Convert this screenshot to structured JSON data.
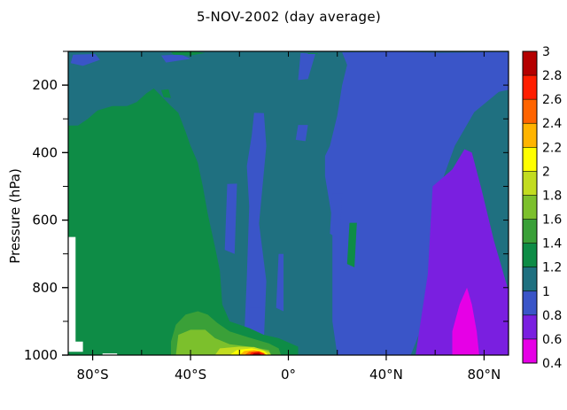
{
  "chart_data": {
    "type": "heatmap",
    "title": "5-NOV-2002 (day average)",
    "ylabel": "Pressure (hPa)",
    "xlabel": "",
    "xlim": [
      -90,
      90
    ],
    "ylim": [
      1000,
      100
    ],
    "y_axis_inverted": true,
    "x_ticks": [
      {
        "value": -80,
        "label": "80°S"
      },
      {
        "value": -40,
        "label": "40°S"
      },
      {
        "value": 0,
        "label": "0°"
      },
      {
        "value": 40,
        "label": "40°N"
      },
      {
        "value": 80,
        "label": "80°N"
      }
    ],
    "y_ticks": [
      {
        "value": 200,
        "label": "200"
      },
      {
        "value": 400,
        "label": "400"
      },
      {
        "value": 600,
        "label": "600"
      },
      {
        "value": 800,
        "label": "800"
      },
      {
        "value": 1000,
        "label": "1000"
      }
    ],
    "colorbar": {
      "levels": [
        0.4,
        0.6,
        0.8,
        1,
        1.2,
        1.4,
        1.6,
        1.8,
        2,
        2.2,
        2.4,
        2.6,
        2.8,
        3
      ],
      "labels": [
        "0.4",
        "0.6",
        "0.8",
        "1",
        "1.2",
        "1.4",
        "1.6",
        "1.8",
        "2",
        "2.2",
        "2.4",
        "2.6",
        "2.8",
        "3"
      ],
      "colors": [
        "#e600e6",
        "#7a1fe0",
        "#3a55c8",
        "#1f7080",
        "#0e8c46",
        "#3aa038",
        "#7cc02c",
        "#c2dc20",
        "#ffff00",
        "#ffb400",
        "#ff6400",
        "#ff1e00",
        "#b40000"
      ]
    },
    "regions": [
      {
        "level": 1.0,
        "desc": "background field",
        "polys": [
          [
            [
              -90,
              100
            ],
            [
              90,
              100
            ],
            [
              90,
              1000
            ],
            [
              -90,
              1000
            ]
          ]
        ]
      },
      {
        "level": 0.8,
        "polys": [
          [
            [
              -88,
              110
            ],
            [
              -79,
              108
            ],
            [
              -77,
              125
            ],
            [
              -84,
              143
            ],
            [
              -89,
              135
            ]
          ],
          [
            [
              -52,
              112
            ],
            [
              -44,
              109
            ],
            [
              -40,
              122
            ],
            [
              -50,
              133
            ]
          ],
          [
            [
              22,
              103
            ],
            [
              44,
              101
            ],
            [
              62,
              104
            ],
            [
              86,
              102
            ],
            [
              90,
              103
            ],
            [
              90,
              214
            ],
            [
              86,
              220
            ],
            [
              76,
              280
            ],
            [
              68,
              380
            ],
            [
              60,
              540
            ],
            [
              62,
              720
            ],
            [
              56,
              890
            ],
            [
              50,
              1000
            ],
            [
              20,
              1000
            ],
            [
              18,
              900
            ],
            [
              18,
              600
            ],
            [
              15,
              470
            ],
            [
              15,
              410
            ],
            [
              17,
              380
            ],
            [
              20,
              290
            ],
            [
              22,
              200
            ],
            [
              24,
              140
            ]
          ],
          [
            [
              5,
              105
            ],
            [
              11,
              108
            ],
            [
              8,
              182
            ],
            [
              4,
              185
            ]
          ],
          [
            [
              -14,
              282
            ],
            [
              -10,
              283
            ],
            [
              -9,
              380
            ],
            [
              -12,
              610
            ],
            [
              -9,
              780
            ],
            [
              -10,
              955
            ],
            [
              -18,
              940
            ],
            [
              -17,
              770
            ],
            [
              -16,
              560
            ],
            [
              -17,
              440
            ],
            [
              -15,
              350
            ]
          ],
          [
            [
              -25,
              493
            ],
            [
              -21,
              492
            ],
            [
              -22,
              700
            ],
            [
              -26,
              688
            ]
          ],
          [
            [
              4,
              318
            ],
            [
              8,
              318
            ],
            [
              7,
              366
            ],
            [
              3,
              362
            ]
          ],
          [
            [
              18,
              520
            ],
            [
              22,
              520
            ],
            [
              21,
              660
            ],
            [
              17,
              640
            ]
          ],
          [
            [
              -4,
              700
            ],
            [
              -2,
              700
            ],
            [
              -2,
              870
            ],
            [
              -5,
              860
            ]
          ],
          [
            [
              -16,
              860
            ],
            [
              -11,
              860
            ],
            [
              -11,
              990
            ],
            [
              -16,
              990
            ]
          ]
        ]
      },
      {
        "level": 0.6,
        "polys": [
          [
            [
              59,
              500
            ],
            [
              67,
              450
            ],
            [
              72,
              390
            ],
            [
              75,
              400
            ],
            [
              79,
              510
            ],
            [
              84,
              660
            ],
            [
              90,
              810
            ],
            [
              90,
              1000
            ],
            [
              52,
              1000
            ],
            [
              57,
              760
            ]
          ]
        ]
      },
      {
        "level": 0.4,
        "polys": [
          [
            [
              67,
              1000
            ],
            [
              67,
              930
            ],
            [
              70,
              850
            ],
            [
              73,
              800
            ],
            [
              75,
              850
            ],
            [
              77,
              930
            ],
            [
              78,
              1000
            ]
          ]
        ]
      },
      {
        "level": 1.2,
        "polys": [
          [
            [
              -90,
              320
            ],
            [
              -86,
              320
            ],
            [
              -82,
              300
            ],
            [
              -78,
              275
            ],
            [
              -72,
              262
            ],
            [
              -66,
              262
            ],
            [
              -62,
              250
            ],
            [
              -58,
              224
            ],
            [
              -55,
              210
            ],
            [
              -52,
              232
            ],
            [
              -48,
              262
            ],
            [
              -45,
              282
            ],
            [
              -42,
              338
            ],
            [
              -40,
              380
            ],
            [
              -37,
              430
            ],
            [
              -35,
              500
            ],
            [
              -33,
              580
            ],
            [
              -30,
              680
            ],
            [
              -28,
              750
            ],
            [
              -27,
              850
            ],
            [
              -24,
              900
            ],
            [
              -16,
              920
            ],
            [
              -10,
              940
            ],
            [
              -4,
              950
            ],
            [
              4,
              975
            ],
            [
              4,
              1000
            ],
            [
              -90,
              1000
            ]
          ],
          [
            [
              -48,
              102
            ],
            [
              -38,
              101
            ],
            [
              -34,
              105
            ],
            [
              -40,
              112
            ],
            [
              -47,
              110
            ]
          ],
          [
            [
              -52,
              215
            ],
            [
              -49,
              212
            ],
            [
              -48,
              238
            ],
            [
              -51,
              236
            ]
          ],
          [
            [
              8,
              106
            ],
            [
              12,
              106
            ],
            [
              12,
              108
            ],
            [
              8,
              108
            ]
          ],
          [
            [
              25,
              608
            ],
            [
              28,
              608
            ],
            [
              27,
              740
            ],
            [
              24,
              730
            ]
          ]
        ]
      },
      {
        "level": 1.4,
        "polys": [
          [
            [
              -48,
              1000
            ],
            [
              -48,
              960
            ],
            [
              -46,
              910
            ],
            [
              -42,
              880
            ],
            [
              -37,
              870
            ],
            [
              -33,
              880
            ],
            [
              -29,
              905
            ],
            [
              -24,
              930
            ],
            [
              -16,
              948
            ],
            [
              -8,
              965
            ],
            [
              -4,
              980
            ],
            [
              -3,
              1000
            ]
          ]
        ]
      },
      {
        "level": 1.6,
        "polys": [
          [
            [
              -46,
              1000
            ],
            [
              -45,
              940
            ],
            [
              -40,
              925
            ],
            [
              -34,
              925
            ],
            [
              -30,
              950
            ],
            [
              -24,
              968
            ],
            [
              -16,
              975
            ],
            [
              -8,
              985
            ],
            [
              -7,
              1000
            ]
          ]
        ]
      },
      {
        "level": 1.8,
        "polys": [
          [
            [
              -30,
              1000
            ],
            [
              -28,
              980
            ],
            [
              -20,
              975
            ],
            [
              -14,
              976
            ],
            [
              -8,
              990
            ],
            [
              -7,
              1000
            ]
          ]
        ]
      },
      {
        "level": 2.0,
        "polys": [
          [
            [
              -24,
              1000
            ],
            [
              -21,
              985
            ],
            [
              -15,
              980
            ],
            [
              -10,
              988
            ],
            [
              -8,
              1000
            ]
          ]
        ]
      },
      {
        "level": 2.2,
        "polys": [
          [
            [
              -20,
              1000
            ],
            [
              -18,
              988
            ],
            [
              -14,
              985
            ],
            [
              -10,
              992
            ],
            [
              -9,
              1000
            ]
          ]
        ]
      },
      {
        "level": 2.4,
        "polys": [
          [
            [
              -18,
              1000
            ],
            [
              -16,
              990
            ],
            [
              -12,
              988
            ],
            [
              -10,
              995
            ],
            [
              -9,
              1000
            ]
          ]
        ]
      },
      {
        "level": 2.6,
        "polys": [
          [
            [
              -16,
              1000
            ],
            [
              -15,
              992
            ],
            [
              -12,
              990
            ],
            [
              -10,
              996
            ],
            [
              -10,
              1000
            ]
          ]
        ]
      },
      {
        "level": 2.8,
        "polys": [
          [
            [
              -15,
              1000
            ],
            [
              -14,
              994
            ],
            [
              -12,
              993
            ],
            [
              -11,
              1000
            ]
          ]
        ]
      },
      {
        "level": 0.0,
        "desc": "missing data",
        "polys": [
          [
            [
              -90,
              650
            ],
            [
              -87,
              650
            ],
            [
              -87,
              960
            ],
            [
              -84,
              960
            ],
            [
              -84,
              990
            ],
            [
              -90,
              990
            ]
          ],
          [
            [
              -76,
              995
            ],
            [
              -70,
              995
            ],
            [
              -70,
              1000
            ],
            [
              -76,
              1000
            ]
          ]
        ]
      }
    ]
  }
}
